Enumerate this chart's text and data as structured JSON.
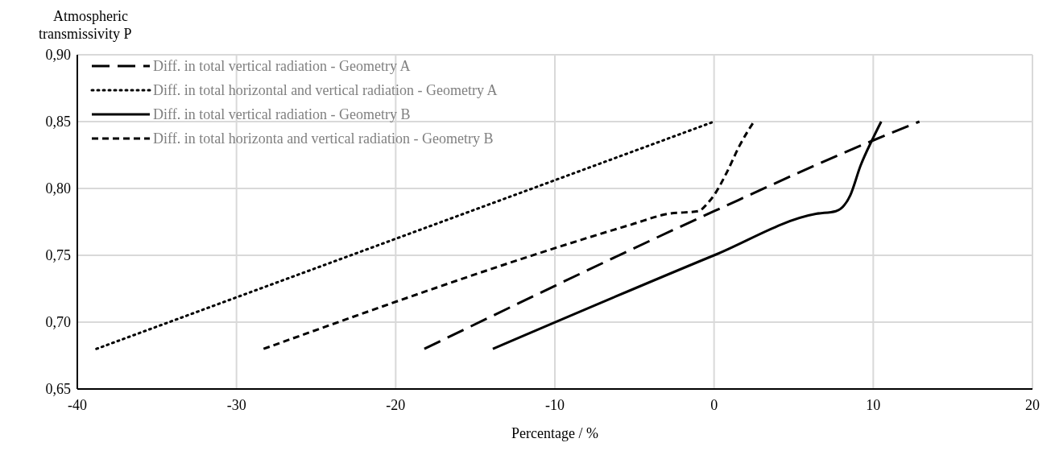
{
  "chart_data": {
    "type": "line",
    "xlabel": "Percentage / %",
    "ylabel": "Atmospheric transmissivity P",
    "xlim": [
      -40,
      20
    ],
    "xticks": [
      -40,
      -30,
      -20,
      -10,
      0,
      10,
      20
    ],
    "ylim": [
      0.65,
      0.9
    ],
    "yticks": [
      {
        "value": 0.65,
        "label": "0,65"
      },
      {
        "value": 0.7,
        "label": "0,70"
      },
      {
        "value": 0.75,
        "label": "0,75"
      },
      {
        "value": 0.8,
        "label": "0,80"
      },
      {
        "value": 0.85,
        "label": "0,85"
      },
      {
        "value": 0.9,
        "label": "0,90"
      }
    ],
    "grid": true,
    "legend": "top left",
    "series": [
      {
        "name": "Diff. in total vertical radiation - Geometry A",
        "color": "#000000",
        "line_style": "long-dashed",
        "x": [
          -18.2,
          0,
          10,
          12.9
        ],
        "values": [
          0.68,
          0.783,
          0.836,
          0.85
        ]
      },
      {
        "name": "Diff. in total horizontal and vertical radiation - Geometry A",
        "color": "#000000",
        "line_style": "dotted",
        "x": [
          -38.8,
          0
        ],
        "values": [
          0.68,
          0.85
        ]
      },
      {
        "name": "Diff. in total vertical radiation - Geometry B",
        "color": "#000000",
        "line_style": "solid",
        "x": [
          -13.9,
          0,
          6.4,
          7.65,
          8.56,
          9.2,
          10,
          10.5
        ],
        "values": [
          0.68,
          0.75,
          0.781,
          0.783,
          0.795,
          0.817,
          0.838,
          0.85
        ]
      },
      {
        "name": "Diff. in total horizonta and vertical radiation - Geometry B",
        "color": "#000000",
        "line_style": "dashed",
        "x": [
          -28.3,
          -5.2,
          -2.9,
          -1.0,
          -0.4,
          0,
          0.8,
          1.6,
          2.5
        ],
        "values": [
          0.68,
          0.773,
          0.781,
          0.783,
          0.789,
          0.795,
          0.812,
          0.832,
          0.85
        ]
      }
    ]
  }
}
